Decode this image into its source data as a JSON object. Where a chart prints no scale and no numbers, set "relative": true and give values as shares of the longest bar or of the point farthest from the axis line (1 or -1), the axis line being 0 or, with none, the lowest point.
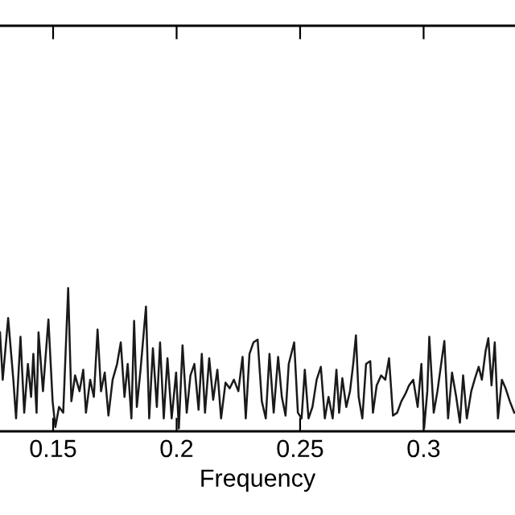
{
  "chart_data": {
    "type": "line",
    "xlabel": "Frequency",
    "relative": true,
    "xlim": [
      0.1285,
      0.337
    ],
    "xticks": [
      0.15,
      0.2,
      0.25,
      0.3
    ],
    "grid": false,
    "legend": false,
    "marker": "none",
    "line_style": "solid",
    "tick_labels": "x",
    "series": [
      {
        "color": "#1a1a1a",
        "x": [
          0.1285,
          0.1296,
          0.1318,
          0.1339,
          0.135,
          0.1368,
          0.1383,
          0.1398,
          0.1411,
          0.142,
          0.1433,
          0.1441,
          0.1459,
          0.1481,
          0.1498,
          0.1509,
          0.1524,
          0.1541,
          0.1561,
          0.1574,
          0.1589,
          0.1607,
          0.1622,
          0.1633,
          0.165,
          0.1665,
          0.168,
          0.1694,
          0.1709,
          0.1724,
          0.1741,
          0.1759,
          0.1774,
          0.1789,
          0.1802,
          0.1817,
          0.1828,
          0.1839,
          0.1854,
          0.1876,
          0.1889,
          0.1904,
          0.192,
          0.1933,
          0.1948,
          0.1963,
          0.198,
          0.1998,
          0.2009,
          0.2024,
          0.2041,
          0.2056,
          0.2072,
          0.2089,
          0.2102,
          0.2115,
          0.2132,
          0.2148,
          0.2165,
          0.218,
          0.2198,
          0.2215,
          0.2232,
          0.225,
          0.2267,
          0.228,
          0.2295,
          0.2311,
          0.2328,
          0.2345,
          0.2361,
          0.2376,
          0.2393,
          0.2411,
          0.2426,
          0.2441,
          0.2454,
          0.2476,
          0.2491,
          0.2506,
          0.2519,
          0.2534,
          0.255,
          0.2567,
          0.2584,
          0.26,
          0.2615,
          0.2632,
          0.2647,
          0.2658,
          0.2671,
          0.2687,
          0.2702,
          0.2715,
          0.2726,
          0.2737,
          0.2752,
          0.2767,
          0.2784,
          0.2795,
          0.281,
          0.2828,
          0.2845,
          0.286,
          0.2876,
          0.2893,
          0.291,
          0.2926,
          0.2941,
          0.2958,
          0.2976,
          0.2991,
          0.3002,
          0.3015,
          0.3023,
          0.3041,
          0.3056,
          0.3071,
          0.3084,
          0.3099,
          0.3115,
          0.3132,
          0.3147,
          0.316,
          0.3175,
          0.3193,
          0.3208,
          0.3223,
          0.3236,
          0.3251,
          0.3262,
          0.3275,
          0.3288,
          0.3301,
          0.3317,
          0.3332,
          0.3349,
          0.3367
        ],
        "values": [
          0.69,
          0.36,
          0.79,
          0.36,
          0.09,
          0.66,
          0.13,
          0.47,
          0.24,
          0.54,
          0.13,
          0.69,
          0.28,
          0.78,
          0.21,
          0.03,
          0.17,
          0.13,
          1.0,
          0.21,
          0.39,
          0.28,
          0.43,
          0.13,
          0.36,
          0.24,
          0.71,
          0.28,
          0.41,
          0.11,
          0.36,
          0.47,
          0.62,
          0.24,
          0.47,
          0.09,
          0.77,
          0.17,
          0.43,
          0.87,
          0.09,
          0.58,
          0.17,
          0.62,
          0.09,
          0.51,
          0.09,
          0.41,
          0.02,
          0.6,
          0.13,
          0.39,
          0.47,
          0.15,
          0.54,
          0.13,
          0.51,
          0.22,
          0.43,
          0.09,
          0.34,
          0.3,
          0.36,
          0.28,
          0.52,
          0.09,
          0.54,
          0.62,
          0.64,
          0.21,
          0.09,
          0.54,
          0.13,
          0.52,
          0.24,
          0.11,
          0.47,
          0.62,
          0.13,
          0.09,
          0.43,
          0.09,
          0.17,
          0.36,
          0.45,
          0.09,
          0.24,
          0.09,
          0.43,
          0.13,
          0.37,
          0.17,
          0.28,
          0.47,
          0.67,
          0.24,
          0.09,
          0.47,
          0.49,
          0.13,
          0.32,
          0.39,
          0.36,
          0.51,
          0.11,
          0.13,
          0.21,
          0.26,
          0.32,
          0.36,
          0.17,
          0.47,
          0.02,
          0.28,
          0.66,
          0.13,
          0.28,
          0.47,
          0.63,
          0.09,
          0.41,
          0.24,
          0.06,
          0.39,
          0.09,
          0.28,
          0.37,
          0.45,
          0.36,
          0.56,
          0.65,
          0.32,
          0.62,
          0.09,
          0.36,
          0.3,
          0.21,
          0.13
        ]
      }
    ]
  }
}
